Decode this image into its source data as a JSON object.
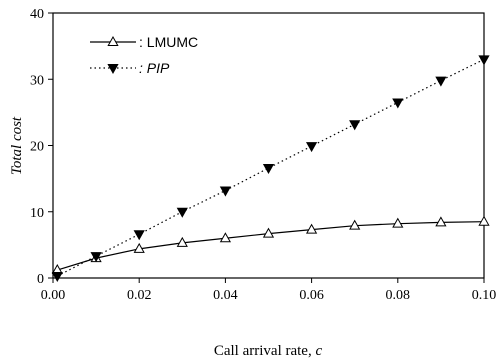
{
  "chart_data": {
    "type": "line",
    "xlabel_text": "Call arrival rate, ",
    "xlabel_var": "c",
    "ylabel": "Total cost",
    "xlim": [
      0.0,
      0.1
    ],
    "ylim": [
      0,
      40
    ],
    "x_ticks": [
      0.0,
      0.02,
      0.04,
      0.06,
      0.08,
      0.1
    ],
    "x_tick_labels": [
      "0.00",
      "0.02",
      "0.04",
      "0.06",
      "0.08",
      "0.10"
    ],
    "y_ticks": [
      0,
      10,
      20,
      30,
      40
    ],
    "y_tick_labels": [
      "0",
      "10",
      "20",
      "30",
      "40"
    ],
    "grid": false,
    "legend_position": "top-left",
    "series": [
      {
        "name": ": LMUMC",
        "line_style": "solid",
        "marker": "open-triangle-up",
        "color": "#000000",
        "x": [
          0.001,
          0.01,
          0.02,
          0.03,
          0.04,
          0.05,
          0.06,
          0.07,
          0.08,
          0.09,
          0.1
        ],
        "y": [
          1.2,
          3.0,
          4.4,
          5.3,
          6.0,
          6.7,
          7.3,
          7.9,
          8.2,
          8.4,
          8.5
        ]
      },
      {
        "name": ": PIP",
        "line_style": "dotted",
        "marker": "filled-triangle-down",
        "color": "#000000",
        "x": [
          0.001,
          0.01,
          0.02,
          0.03,
          0.04,
          0.05,
          0.06,
          0.07,
          0.08,
          0.09,
          0.1
        ],
        "y": [
          0.3,
          3.3,
          6.6,
          10.0,
          13.2,
          16.6,
          19.9,
          23.2,
          26.5,
          29.8,
          33.0
        ]
      }
    ]
  }
}
